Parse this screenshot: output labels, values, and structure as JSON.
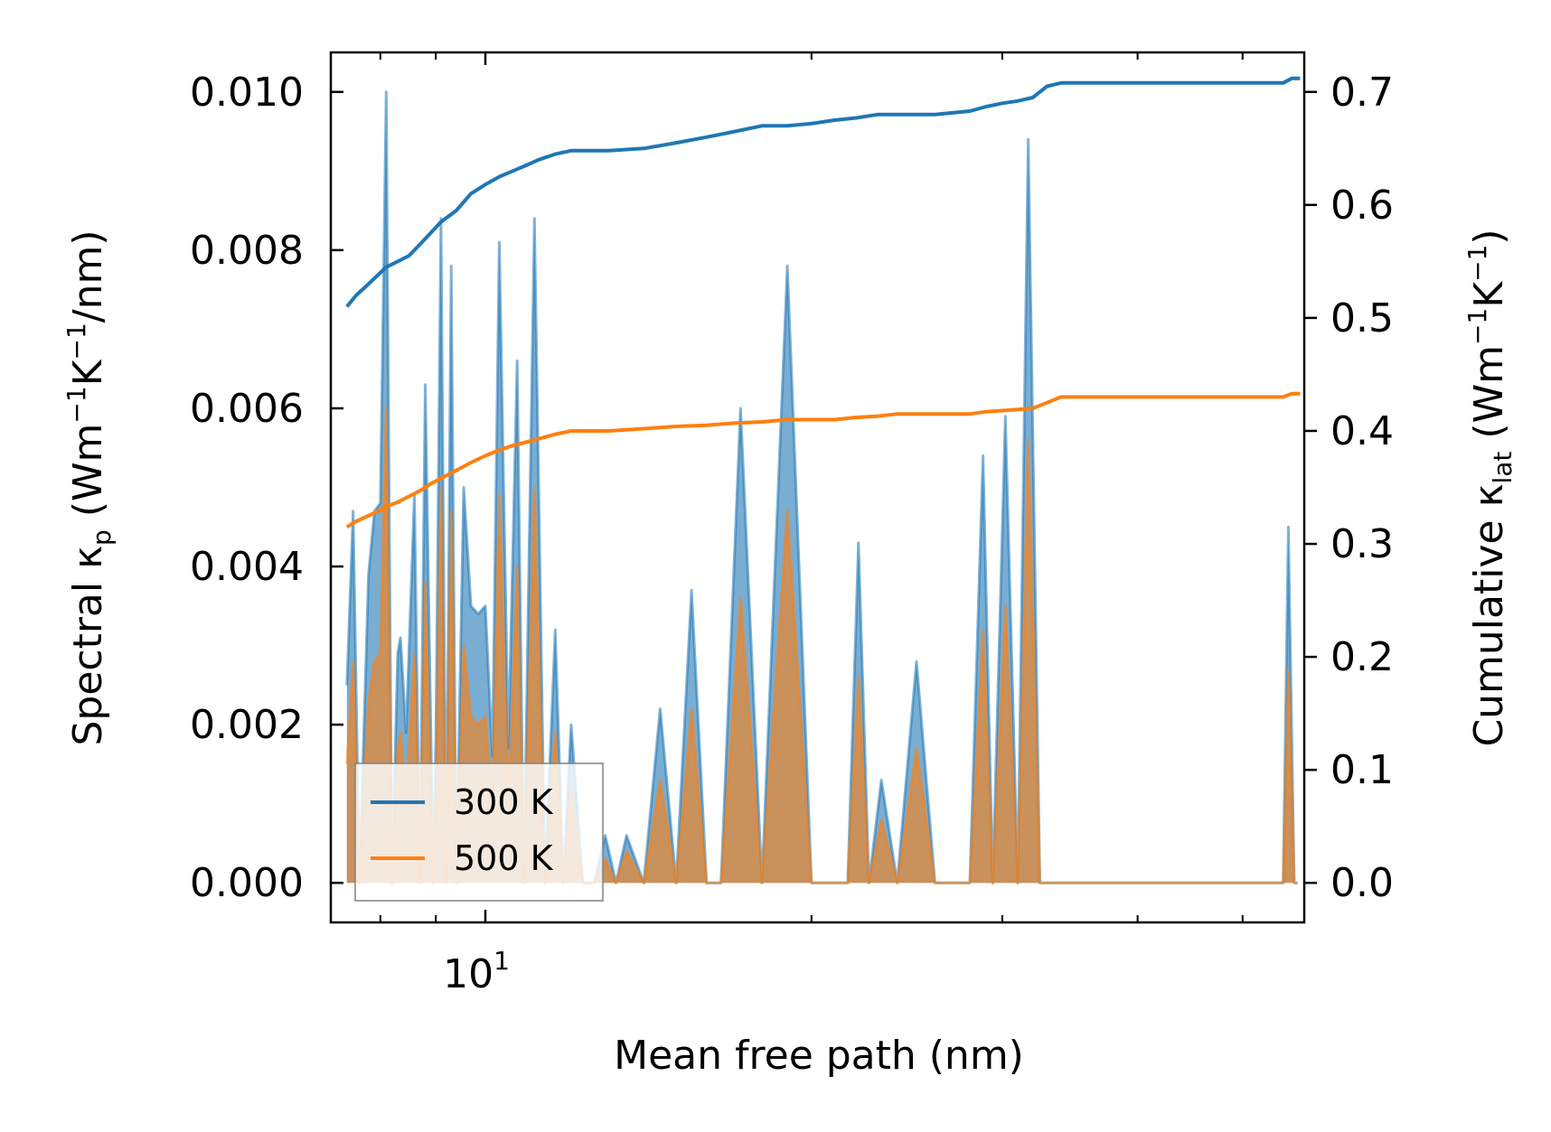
{
  "chart_data": {
    "type": "line",
    "xscale": "log",
    "xlabel": "Mean free path (nm)",
    "xlim": [
      7.2,
      57.0
    ],
    "x_tick_labels": [
      {
        "value": 10,
        "base": "10",
        "exp": "1"
      }
    ],
    "x_minor_ticks": [
      8,
      9,
      20,
      30,
      40,
      50
    ],
    "left_axis": {
      "label_parts": {
        "a": "Spectral κ",
        "a_sub": "p",
        "b": " (Wm",
        "sup1": "−1",
        "c": "K",
        "sup2": "−1",
        "d": "/nm)"
      },
      "ylim": [
        -0.0005,
        0.0105
      ],
      "ticks": [
        0.0,
        0.002,
        0.004,
        0.006,
        0.008,
        0.01
      ],
      "tick_labels": [
        "0.000",
        "0.002",
        "0.004",
        "0.006",
        "0.008",
        "0.010"
      ]
    },
    "right_axis": {
      "label_parts": {
        "a": "Cumulative κ",
        "a_sub": "lat",
        "b": " (Wm",
        "sup1": "−1",
        "c": "K",
        "sup2": "−1",
        "d": ")"
      },
      "ylim": [
        -0.035,
        0.735
      ],
      "ticks": [
        0.0,
        0.1,
        0.2,
        0.3,
        0.4,
        0.5,
        0.6,
        0.7
      ],
      "tick_labels": [
        "0.0",
        "0.1",
        "0.2",
        "0.3",
        "0.4",
        "0.5",
        "0.6",
        "0.7"
      ]
    },
    "legend": {
      "position": "lower-left",
      "entries": [
        "300 K",
        "500 K"
      ]
    },
    "colors": {
      "300K": "#1f77b4",
      "500K": "#ff7f0e"
    },
    "series": [
      {
        "name": "300 K",
        "spectral": {
          "x": [
            7.45,
            7.55,
            7.65,
            7.8,
            7.9,
            8.0,
            8.1,
            8.2,
            8.3,
            8.35,
            8.45,
            8.6,
            8.7,
            8.8,
            8.9,
            8.95,
            9.0,
            9.1,
            9.2,
            9.3,
            9.4,
            9.55,
            9.7,
            9.85,
            10.0,
            10.15,
            10.3,
            10.5,
            10.7,
            10.85,
            11.1,
            11.35,
            11.6,
            11.8,
            12.0,
            12.3,
            12.6,
            12.9,
            13.2,
            13.5,
            14.0,
            14.5,
            15.0,
            15.5,
            16.0,
            16.5,
            17.2,
            18.0,
            19.0,
            20.0,
            21.0,
            21.6,
            22.1,
            22.6,
            23.2,
            24.0,
            25.0,
            26.0,
            27.0,
            28.0,
            28.8,
            29.4,
            30.2,
            31.0,
            31.7,
            32.5,
            33.3,
            34.1,
            35.0,
            36.0,
            38.0,
            40.0,
            42.0,
            45.0,
            48.0,
            50.0,
            53.0,
            54.5,
            55.1,
            55.8,
            56.2
          ],
          "y": [
            0.0025,
            0.0047,
            0.0,
            0.0039,
            0.0047,
            0.0048,
            0.01,
            0.0,
            0.0029,
            0.0031,
            0.0019,
            0.0049,
            0.0,
            0.0063,
            0.0022,
            0.0,
            0.0018,
            0.0084,
            0.0,
            0.0078,
            0.0,
            0.005,
            0.0035,
            0.0034,
            0.0035,
            0.0016,
            0.0081,
            0.0017,
            0.0066,
            0.0,
            0.0084,
            0.0,
            0.0032,
            0.0,
            0.002,
            0.0,
            0.0,
            0.0006,
            0.0,
            0.0006,
            0.0,
            0.0022,
            0.0,
            0.0037,
            0.0,
            0.0,
            0.006,
            0.0,
            0.0078,
            0.0,
            0.0,
            0.0,
            0.0043,
            0.0,
            0.0013,
            0.0,
            0.0028,
            0.0,
            0.0,
            0.0,
            0.0054,
            0.0,
            0.0059,
            0.0,
            0.0094,
            0.0,
            0.0,
            0.0,
            0.0,
            0.0,
            0.0,
            0.0,
            0.0,
            0.0,
            0.0,
            0.0,
            0.0,
            0.0,
            0.0045,
            0.0,
            0.0
          ]
        },
        "cumulative": {
          "x": [
            7.45,
            7.6,
            7.8,
            8.0,
            8.1,
            8.3,
            8.5,
            8.7,
            8.9,
            9.1,
            9.4,
            9.7,
            10.0,
            10.3,
            10.6,
            10.9,
            11.2,
            11.6,
            12.0,
            13.0,
            14.0,
            15.0,
            16.0,
            17.0,
            18.0,
            19.0,
            20.0,
            21.0,
            22.0,
            23.0,
            24.0,
            26.0,
            28.0,
            29.0,
            30.0,
            31.0,
            32.0,
            33.0,
            34.0,
            36.0,
            40.0,
            45.0,
            50.0,
            54.5,
            55.5,
            56.5
          ],
          "y": [
            0.51,
            0.52,
            0.53,
            0.54,
            0.545,
            0.55,
            0.555,
            0.565,
            0.575,
            0.585,
            0.595,
            0.61,
            0.618,
            0.625,
            0.63,
            0.635,
            0.64,
            0.645,
            0.648,
            0.648,
            0.65,
            0.655,
            0.66,
            0.665,
            0.67,
            0.67,
            0.672,
            0.675,
            0.677,
            0.68,
            0.68,
            0.68,
            0.683,
            0.687,
            0.69,
            0.692,
            0.695,
            0.705,
            0.708,
            0.708,
            0.708,
            0.708,
            0.708,
            0.708,
            0.712,
            0.712
          ]
        }
      },
      {
        "name": "500 K",
        "spectral": {
          "x": [
            7.45,
            7.55,
            7.65,
            7.8,
            7.9,
            8.0,
            8.1,
            8.2,
            8.3,
            8.35,
            8.45,
            8.6,
            8.7,
            8.8,
            8.9,
            8.95,
            9.0,
            9.1,
            9.2,
            9.3,
            9.4,
            9.55,
            9.7,
            9.85,
            10.0,
            10.15,
            10.3,
            10.5,
            10.7,
            10.85,
            11.1,
            11.35,
            11.6,
            11.8,
            12.0,
            12.3,
            12.6,
            12.9,
            13.2,
            13.5,
            14.0,
            14.5,
            15.0,
            15.5,
            16.0,
            16.5,
            17.2,
            18.0,
            19.0,
            20.0,
            21.0,
            21.6,
            22.1,
            22.6,
            23.2,
            24.0,
            25.0,
            26.0,
            27.0,
            28.0,
            28.8,
            29.4,
            30.2,
            31.0,
            31.7,
            32.5,
            33.3,
            34.1,
            35.0,
            36.0,
            38.0,
            40.0,
            42.0,
            45.0,
            48.0,
            50.0,
            53.0,
            54.5,
            55.1,
            55.8,
            56.2
          ],
          "y": [
            0.0015,
            0.0028,
            0.0,
            0.0023,
            0.0028,
            0.0029,
            0.006,
            0.0,
            0.0017,
            0.0019,
            0.0011,
            0.0029,
            0.0,
            0.0038,
            0.0013,
            0.0,
            0.0011,
            0.005,
            0.0,
            0.0047,
            0.0,
            0.003,
            0.0021,
            0.002,
            0.0021,
            0.001,
            0.0049,
            0.001,
            0.004,
            0.0,
            0.005,
            0.0,
            0.0019,
            0.0,
            0.0012,
            0.0,
            0.0,
            0.0003,
            0.0,
            0.0004,
            0.0,
            0.0013,
            0.0,
            0.0022,
            0.0,
            0.0,
            0.0036,
            0.0,
            0.0047,
            0.0,
            0.0,
            0.0,
            0.0026,
            0.0,
            0.0008,
            0.0,
            0.0017,
            0.0,
            0.0,
            0.0,
            0.0032,
            0.0,
            0.0035,
            0.0,
            0.0056,
            0.0,
            0.0,
            0.0,
            0.0,
            0.0,
            0.0,
            0.0,
            0.0,
            0.0,
            0.0,
            0.0,
            0.0,
            0.0,
            0.0027,
            0.0,
            0.0
          ]
        },
        "cumulative": {
          "x": [
            7.45,
            7.6,
            7.8,
            8.0,
            8.1,
            8.3,
            8.5,
            8.7,
            8.9,
            9.1,
            9.4,
            9.7,
            10.0,
            10.3,
            10.6,
            10.9,
            11.2,
            11.6,
            12.0,
            13.0,
            14.0,
            15.0,
            16.0,
            17.0,
            18.0,
            19.0,
            20.0,
            21.0,
            22.0,
            23.0,
            24.0,
            26.0,
            28.0,
            29.0,
            30.0,
            31.0,
            32.0,
            33.0,
            34.0,
            36.0,
            40.0,
            45.0,
            50.0,
            54.5,
            55.5,
            56.5
          ],
          "y": [
            0.315,
            0.32,
            0.325,
            0.33,
            0.333,
            0.337,
            0.342,
            0.347,
            0.353,
            0.358,
            0.365,
            0.372,
            0.378,
            0.383,
            0.387,
            0.39,
            0.393,
            0.397,
            0.4,
            0.4,
            0.402,
            0.404,
            0.405,
            0.407,
            0.408,
            0.41,
            0.41,
            0.41,
            0.412,
            0.413,
            0.415,
            0.415,
            0.415,
            0.417,
            0.418,
            0.419,
            0.42,
            0.425,
            0.43,
            0.43,
            0.43,
            0.43,
            0.43,
            0.43,
            0.433,
            0.433
          ]
        }
      }
    ]
  }
}
